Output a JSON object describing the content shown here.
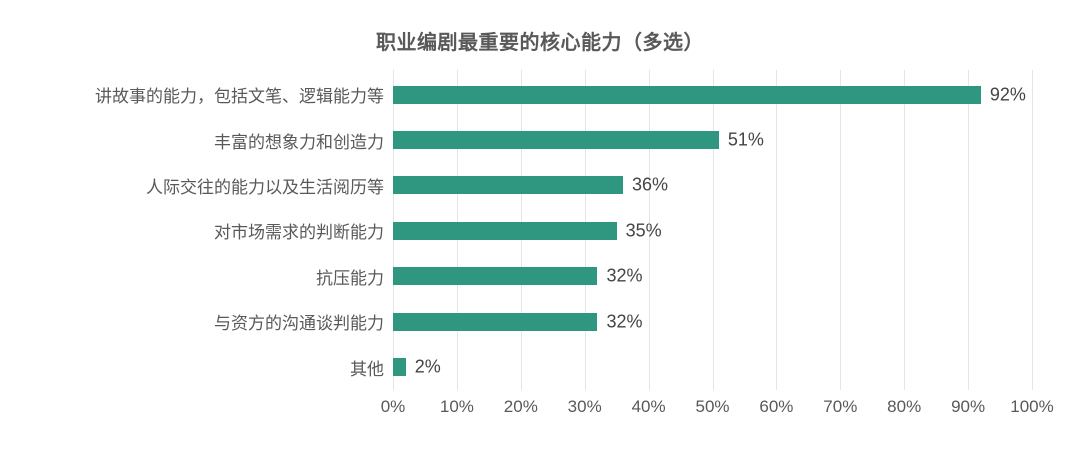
{
  "title": "职业编剧最重要的核心能力（多选）",
  "chart_data": {
    "type": "bar",
    "orientation": "horizontal",
    "title": "职业编剧最重要的核心能力（多选）",
    "categories": [
      "讲故事的能力，包括文笔、逻辑能力等",
      "丰富的想象力和创造力",
      "人际交往的能力以及生活阅历等",
      "对市场需求的判断能力",
      "抗压能力",
      "与资方的沟通谈判能力",
      "其他"
    ],
    "values": [
      92,
      51,
      36,
      35,
      32,
      32,
      2
    ],
    "value_labels": [
      "92%",
      "51%",
      "36%",
      "35%",
      "32%",
      "32%",
      "2%"
    ],
    "xlabel": "",
    "ylabel": "",
    "xlim": [
      0,
      100
    ],
    "x_ticks": [
      "0%",
      "10%",
      "20%",
      "30%",
      "40%",
      "50%",
      "60%",
      "70%",
      "80%",
      "90%",
      "100%"
    ],
    "grid": "vertical",
    "legend": "none",
    "colors": {
      "bar": "#2f9680",
      "gridline": "#e5e5e5",
      "title_text": "#595959",
      "category_text": "#595959",
      "value_text": "#444444",
      "axis_text": "#595959",
      "background": "#ffffff"
    }
  }
}
